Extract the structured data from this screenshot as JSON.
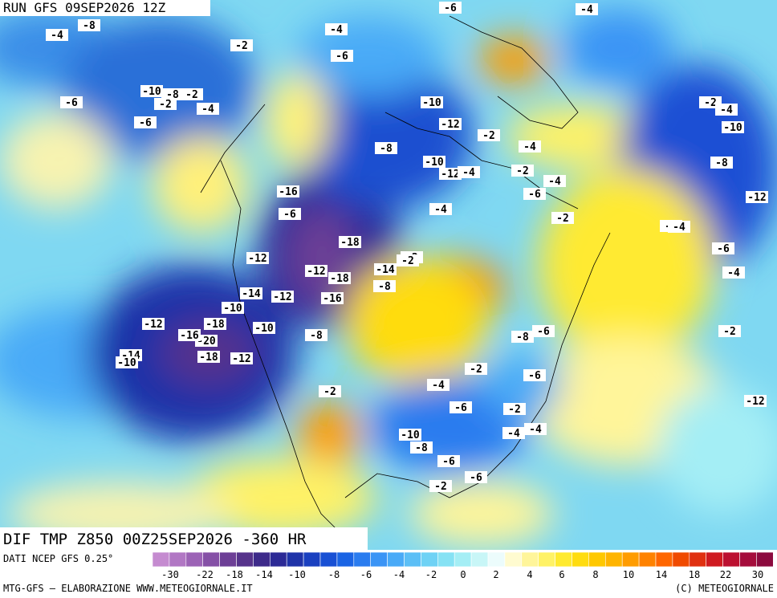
{
  "header": {
    "run": "RUN GFS 09SEP2026 12Z"
  },
  "map": {
    "title": "DIF TMP Z850 00Z25SEP2026 -360 HR",
    "contour_labels": [
      "-4",
      "-8",
      "-2",
      "-6",
      "-4",
      "-6",
      "-4",
      "-10",
      "-8",
      "-2",
      "-6",
      "-2",
      "-4",
      "-6",
      "-10",
      "-12",
      "-8",
      "-10",
      "-12",
      "-4",
      "-2",
      "-2",
      "-4",
      "-2",
      "-16",
      "-18",
      "-18",
      "-12",
      "-14",
      "-12",
      "-16",
      "-6",
      "-12",
      "-10",
      "-14",
      "-18",
      "-20",
      "-16",
      "-18",
      "-12",
      "-10",
      "-8",
      "-10",
      "-14",
      "-12",
      "-2",
      "-4",
      "-6",
      "-4",
      "-8",
      "-6",
      "-10",
      "-8",
      "-6",
      "-2",
      "-4",
      "-6",
      "-2",
      "-4",
      "-6",
      "-2",
      "-4",
      "-6",
      "-8",
      "-2",
      "-12",
      "-2",
      "-4",
      "-2",
      "-6",
      "-10",
      "-8",
      "-12",
      "-4",
      "-4",
      "-2",
      "-2"
    ]
  },
  "footer": {
    "source": "DATI NCEP GFS 0.25°",
    "credit": "MTG-GFS — ELABORAZIONE WWW.METEOGIORNALE.IT",
    "copyright": "(C) METEOGIORNALE"
  },
  "colorbar": {
    "colors": [
      "#c58bd0",
      "#b177c4",
      "#9c63b6",
      "#8550a6",
      "#6d3f96",
      "#56338b",
      "#3d2a8a",
      "#2c2a96",
      "#1f33a8",
      "#1a40c0",
      "#1850d4",
      "#1a64e4",
      "#2a7cef",
      "#3b94f5",
      "#4aaaf7",
      "#5cbff6",
      "#6fd2f5",
      "#86e2f4",
      "#a4eef5",
      "#c8f6f7",
      "#ecfcfc",
      "#fffbd0",
      "#fff59a",
      "#fff266",
      "#ffea30",
      "#ffdc10",
      "#ffc800",
      "#ffb400",
      "#ff9c00",
      "#ff8200",
      "#ff6600",
      "#f04a00",
      "#e03010",
      "#cf1a20",
      "#bc1030",
      "#a50d3c",
      "#8c0a3e"
    ],
    "labels": [
      "-30",
      "-22",
      "-18",
      "-14",
      "-10",
      "-8",
      "-6",
      "-4",
      "-2",
      "0",
      "2",
      "4",
      "6",
      "8",
      "10",
      "14",
      "18",
      "22",
      "30"
    ]
  }
}
